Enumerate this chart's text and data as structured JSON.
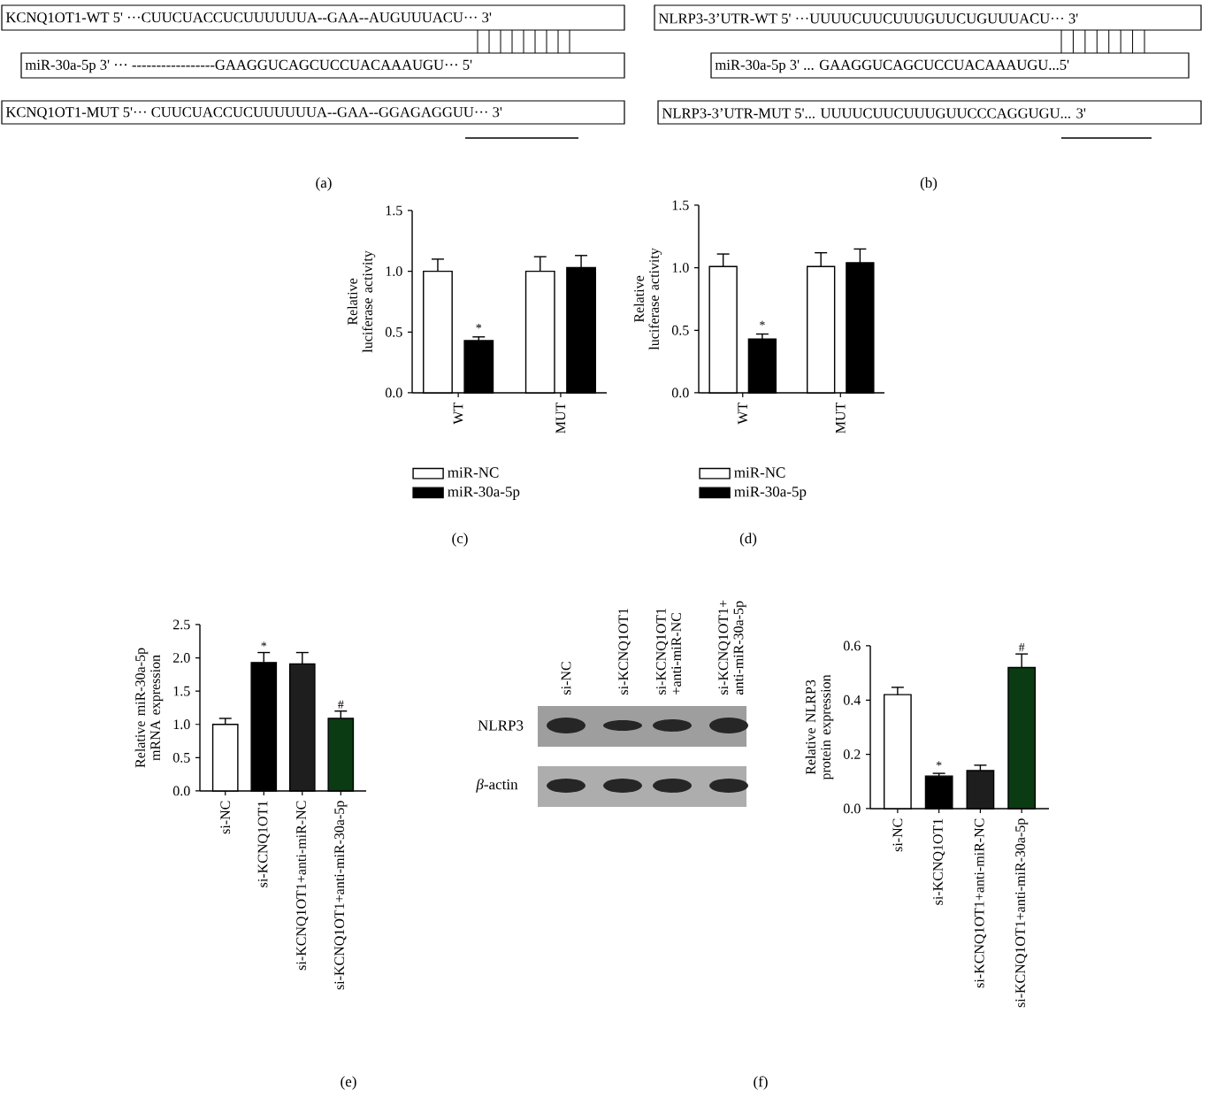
{
  "chart_data": [
    {
      "type": "other",
      "annotations": [
        "KCNQ1OT1-WT 5' ···CUUCUACCUCUUUUUUA--GAA--AUGUUUACU··· 3'",
        "miR-30a-5p 3' ··· -----------------GAAGGUCAGCUCCUACAAAUGU··· 5'",
        "KCNQ1OT1-MUT 5'··· CUUCUACCUCUUUUUUA--GAA--GGAGAGGUU··· 3'",
        "(a)"
      ]
    },
    {
      "type": "other",
      "annotations": [
        "NLRP3-3’UTR-WT 5' ···UUUUCUUCUUUGUUCUGUUUACU··· 3'",
        "miR-30a-5p 3' ... GAAGGUCAGCUCCUACAAAUGU...5'",
        "NLRP3-3’UTR-MUT 5'... UUUUCUUCUUUGUUCCCAGGUGU... 3'",
        "(b)"
      ]
    },
    {
      "type": "bar",
      "categories": [
        "WT",
        "MUT"
      ],
      "ylabel": "Relative luciferase activity",
      "series": [
        {
          "name": "miR-NC",
          "color": "#ffffff",
          "values": [
            1.0,
            1.0
          ],
          "errors": [
            0.1,
            0.12
          ]
        },
        {
          "name": "miR-30a-5p",
          "color": "#000000",
          "values": [
            0.43,
            1.03
          ],
          "errors": [
            0.03,
            0.1
          ]
        }
      ],
      "ylim": [
        0,
        1.5
      ],
      "yticks": [
        {
          "value": 0,
          "label": "0.0"
        },
        0.5,
        {
          "value": 1,
          "label": "1.0"
        },
        1.5
      ],
      "legend": "bottom",
      "annotations": [
        {
          "text": "*",
          "x": "WT",
          "y": 0.49
        },
        "(c)"
      ]
    },
    {
      "type": "bar",
      "categories": [
        "WT",
        "MUT"
      ],
      "ylabel": "Relative luciferase activity",
      "series": [
        {
          "name": "miR-NC",
          "color": "#ffffff",
          "values": [
            1.01,
            1.01
          ],
          "errors": [
            0.1,
            0.11
          ]
        },
        {
          "name": "miR-30a-5p",
          "color": "#000000",
          "values": [
            0.43,
            1.04
          ],
          "errors": [
            0.04,
            0.11
          ]
        }
      ],
      "ylim": [
        0,
        1.5
      ],
      "yticks": [
        {
          "value": 0,
          "label": "0.0"
        },
        0.5,
        {
          "value": 1,
          "label": "1.0"
        },
        1.5
      ],
      "legend": "bottom",
      "annotations": [
        {
          "text": "*",
          "x": "WT",
          "y": 0.5
        },
        "(d)"
      ]
    },
    {
      "type": "bar",
      "categories": [
        "si-NC",
        "si-KCNQ1OT1",
        "si-KCNQ1OT1+anti-miR-NC",
        "si-KCNQ1OT1+anti-miR-30a-5p"
      ],
      "ylabel": "Relative miR-30a-5p mRNA expression",
      "values": [
        1.0,
        1.93,
        1.91,
        1.09
      ],
      "errors": [
        0.09,
        0.15,
        0.17,
        0.11
      ],
      "colors": [
        "#ffffff",
        "#000000",
        "#1e1e1e",
        "#0b3b13"
      ],
      "ylim": [
        0,
        2.5
      ],
      "yticks": [
        {
          "value": 0,
          "label": "0.0"
        },
        0.5,
        {
          "value": 1,
          "label": "1.0"
        },
        1.5,
        {
          "value": 2,
          "label": "2.0"
        },
        2.5
      ],
      "annotations": [
        {
          "text": "*",
          "x": "si-KCNQ1OT1",
          "y": 2.1
        },
        {
          "text": "#",
          "x": "si-KCNQ1OT1+anti-miR-30a-5p",
          "y": 1.22
        },
        "(e)"
      ]
    },
    {
      "type": "other",
      "annotations": [
        "si-NC",
        "si-KCNQ1OT1",
        "si-KCNQ1OT1 +anti-miR-NC",
        "si-KCNQ1OT1+ anti-miR-30a-5p",
        "NLRP3",
        "*β*-actin",
        "(f)"
      ]
    },
    {
      "type": "bar",
      "categories": [
        "si-NC",
        "si-KCNQ1OT1",
        "si-KCNQ1OT1+anti-miR-NC",
        "si-KCNQ1OT1+anti-miR-30a-5p"
      ],
      "ylabel": "Relative NLRP3 protein expression",
      "values": [
        0.42,
        0.12,
        0.14,
        0.52
      ],
      "errors": [
        0.027,
        0.01,
        0.02,
        0.05
      ],
      "colors": [
        "#ffffff",
        "#000000",
        "#1e1e1e",
        "#0b3b13"
      ],
      "ylim": [
        0,
        0.6
      ],
      "yticks": [
        {
          "value": 0,
          "label": "0.0"
        },
        0.2,
        0.4,
        0.6
      ],
      "annotations": [
        {
          "text": "*",
          "x": "si-KCNQ1OT1",
          "y": 0.14
        },
        {
          "text": "#",
          "x": "si-KCNQ1OT1+anti-miR-30a-5p",
          "y": 0.575
        }
      ]
    }
  ]
}
